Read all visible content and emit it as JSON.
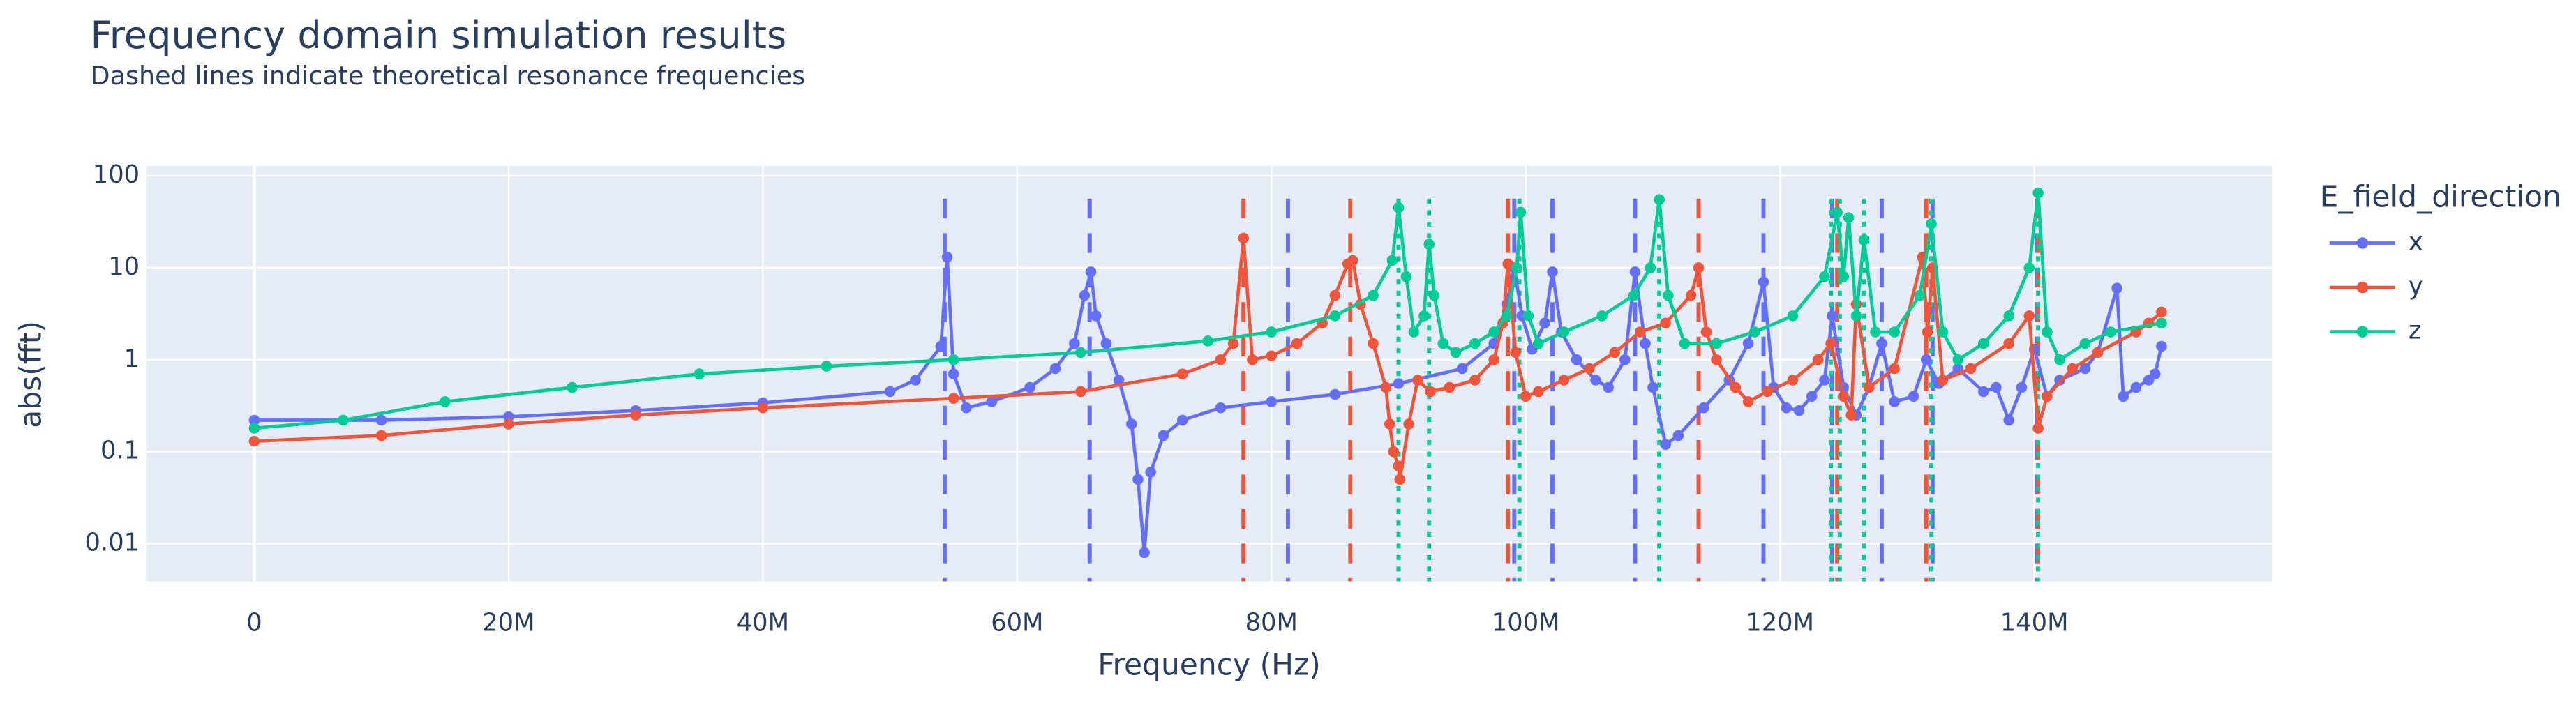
{
  "chart_data": {
    "type": "line",
    "title": "Frequency domain simulation results",
    "subtitle": "Dashed lines indicate theoretical resonance frequencies",
    "x_label": "Frequency (Hz)",
    "y_label": "abs(fft)",
    "legend_title": "E_field_direction",
    "legend_position": "right",
    "grid": true,
    "y_scale": "log",
    "xlim": [
      -8500000.0,
      158700000.0
    ],
    "ylim": [
      0.0039,
      128
    ],
    "xticks": [
      0,
      {
        "value": 20000000.0,
        "label": "20M"
      },
      {
        "value": 40000000.0,
        "label": "40M"
      },
      {
        "value": 60000000.0,
        "label": "60M"
      },
      {
        "value": 80000000.0,
        "label": "80M"
      },
      {
        "value": 100000000.0,
        "label": "100M"
      },
      {
        "value": 120000000.0,
        "label": "120M"
      },
      {
        "value": 140000000.0,
        "label": "140M"
      }
    ],
    "yticks": [
      0.01,
      0.1,
      1,
      10,
      100
    ],
    "series": [
      {
        "name": "x",
        "color": "#636efa",
        "x": [
          0,
          10000000.0,
          20000000.0,
          30000000.0,
          40000000.0,
          50000000.0,
          52000000.0,
          54000000.0,
          54500000.0,
          55000000.0,
          56000000.0,
          58000000.0,
          61000000.0,
          63000000.0,
          64500000.0,
          65300000.0,
          65800000.0,
          66200000.0,
          67000000.0,
          68000000.0,
          69000000.0,
          69500000.0,
          70000000.0,
          70500000.0,
          71500000.0,
          73000000.0,
          76000000.0,
          80000000.0,
          85000000.0,
          90000000.0,
          95000000.0,
          97500000.0,
          98500000.0,
          99100000.0,
          99700000.0,
          100500000.0,
          101500000.0,
          102100000.0,
          102800000.0,
          104000000.0,
          105500000.0,
          106500000.0,
          107800000.0,
          108600000.0,
          109400000.0,
          110000000.0,
          111000000.0,
          112000000.0,
          114000000.0,
          116000000.0,
          117500000.0,
          118700000.0,
          119500000.0,
          120500000.0,
          121500000.0,
          122500000.0,
          123500000.0,
          124100000.0,
          125000000.0,
          126000000.0,
          127000000.0,
          128000000.0,
          129000000.0,
          130500000.0,
          131500000.0,
          132500000.0,
          134000000.0,
          136000000.0,
          137000000.0,
          138000000.0,
          139000000.0,
          140000000.0,
          141000000.0,
          142000000.0,
          144000000.0,
          145000000.0,
          146500000.0,
          147000000.0,
          148000000.0,
          149000000.0,
          149500000.0,
          150000000.0
        ],
        "values": [
          0.22,
          0.22,
          0.24,
          0.28,
          0.34,
          0.45,
          0.6,
          1.4,
          13,
          0.7,
          0.3,
          0.35,
          0.5,
          0.8,
          1.5,
          5,
          9,
          3,
          1.5,
          0.6,
          0.2,
          0.05,
          0.008,
          0.06,
          0.15,
          0.22,
          0.3,
          0.35,
          0.42,
          0.55,
          0.8,
          1.5,
          4,
          10,
          3,
          1.3,
          2.5,
          9,
          2,
          1,
          0.6,
          0.5,
          1,
          9,
          1.5,
          0.5,
          0.12,
          0.15,
          0.3,
          0.6,
          1.5,
          7,
          0.5,
          0.3,
          0.28,
          0.4,
          0.6,
          3,
          0.5,
          0.25,
          0.5,
          1.5,
          0.35,
          0.4,
          1,
          0.55,
          0.8,
          0.45,
          0.5,
          0.22,
          0.5,
          1.3,
          0.4,
          0.6,
          0.8,
          1.2,
          6,
          0.4,
          0.5,
          0.6,
          0.7,
          1.4
        ]
      },
      {
        "name": "y",
        "color": "#EF553B",
        "x": [
          0,
          10000000.0,
          20000000.0,
          30000000.0,
          40000000.0,
          55000000.0,
          65000000.0,
          73000000.0,
          76000000.0,
          77000000.0,
          77800000.0,
          78500000.0,
          80000000.0,
          82000000.0,
          84000000.0,
          85000000.0,
          86000000.0,
          86400000.0,
          87000000.0,
          88000000.0,
          89000000.0,
          89300000.0,
          89600000.0,
          90000000.0,
          90100000.0,
          90800000.0,
          91500000.0,
          92500000.0,
          94000000.0,
          96000000.0,
          97500000.0,
          98200000.0,
          98600000.0,
          99200000.0,
          100000000.0,
          101000000.0,
          103000000.0,
          105000000.0,
          107000000.0,
          109000000.0,
          111000000.0,
          113000000.0,
          113600000.0,
          114200000.0,
          115000000.0,
          116500000.0,
          117500000.0,
          119000000.0,
          121000000.0,
          123000000.0,
          124000000.0,
          125000000.0,
          125600000.0,
          126000000.0,
          127000000.0,
          129000000.0,
          131200000.0,
          131600000.0,
          132000000.0,
          132800000.0,
          135000000.0,
          138000000.0,
          139600000.0,
          140300000.0,
          141000000.0,
          143000000.0,
          145000000.0,
          148000000.0,
          149000000.0,
          150000000.0
        ],
        "values": [
          0.13,
          0.15,
          0.2,
          0.25,
          0.3,
          0.38,
          0.45,
          0.7,
          1,
          1.5,
          21,
          1,
          1.1,
          1.5,
          2.5,
          5,
          11,
          12,
          4,
          1.5,
          0.5,
          0.2,
          0.1,
          0.07,
          0.05,
          0.2,
          0.6,
          0.45,
          0.5,
          0.6,
          1,
          2.5,
          11,
          1.2,
          0.4,
          0.45,
          0.6,
          0.8,
          1.2,
          2,
          2.5,
          5,
          10,
          2,
          1,
          0.5,
          0.35,
          0.45,
          0.6,
          1,
          1.5,
          0.4,
          0.25,
          4,
          0.5,
          0.8,
          13,
          2,
          10,
          0.6,
          0.8,
          1.5,
          3,
          0.18,
          0.4,
          0.8,
          1.2,
          2,
          2.5,
          3.3
        ]
      },
      {
        "name": "z",
        "color": "#00cc96",
        "x": [
          0,
          7000000.0,
          15000000.0,
          25000000.0,
          35000000.0,
          45000000.0,
          55000000.0,
          65000000.0,
          75000000.0,
          80000000.0,
          85000000.0,
          88000000.0,
          89500000.0,
          90000000.0,
          90600000.0,
          91200000.0,
          92000000.0,
          92400000.0,
          92800000.0,
          93500000.0,
          94500000.0,
          96000000.0,
          97500000.0,
          98500000.0,
          99300000.0,
          99600000.0,
          100200000.0,
          101000000.0,
          103000000.0,
          106000000.0,
          108500000.0,
          109800000.0,
          110500000.0,
          111200000.0,
          112500000.0,
          115000000.0,
          118000000.0,
          121000000.0,
          123500000.0,
          124500000.0,
          125000000.0,
          125400000.0,
          126000000.0,
          126600000.0,
          127500000.0,
          129000000.0,
          131000000.0,
          131900000.0,
          132800000.0,
          134000000.0,
          136000000.0,
          138000000.0,
          139600000.0,
          140300000.0,
          141000000.0,
          142000000.0,
          144000000.0,
          146000000.0,
          150000000.0
        ],
        "values": [
          0.18,
          0.22,
          0.35,
          0.5,
          0.7,
          0.85,
          1,
          1.2,
          1.6,
          2,
          3,
          5,
          12,
          45,
          8,
          2,
          3,
          18,
          5,
          1.5,
          1.2,
          1.5,
          2,
          3,
          10,
          40,
          3,
          1.5,
          2,
          3,
          5,
          10,
          55,
          5,
          1.5,
          1.5,
          2,
          3,
          8,
          40,
          8,
          35,
          3,
          20,
          2,
          2,
          5,
          30,
          2,
          1,
          1.5,
          3,
          10,
          65,
          2,
          1,
          1.5,
          2,
          2.5
        ]
      }
    ],
    "resonance_lines": [
      {
        "x": 54300000.0,
        "color": "#636efa",
        "dash": "dash"
      },
      {
        "x": 65700000.0,
        "color": "#636efa",
        "dash": "dash"
      },
      {
        "x": 81300000.0,
        "color": "#636efa",
        "dash": "dash"
      },
      {
        "x": 99100000.0,
        "color": "#636efa",
        "dash": "dash"
      },
      {
        "x": 102100000.0,
        "color": "#636efa",
        "dash": "dash"
      },
      {
        "x": 108600000.0,
        "color": "#636efa",
        "dash": "dash"
      },
      {
        "x": 118700000.0,
        "color": "#636efa",
        "dash": "dash"
      },
      {
        "x": 124100000.0,
        "color": "#636efa",
        "dash": "dash"
      },
      {
        "x": 128000000.0,
        "color": "#636efa",
        "dash": "dash"
      },
      {
        "x": 132000000.0,
        "color": "#636efa",
        "dash": "dash"
      },
      {
        "x": 140200000.0,
        "color": "#636efa",
        "dash": "dash"
      },
      {
        "x": 77800000.0,
        "color": "#EF553B",
        "dash": "dash"
      },
      {
        "x": 86200000.0,
        "color": "#EF553B",
        "dash": "dash"
      },
      {
        "x": 98600000.0,
        "color": "#EF553B",
        "dash": "dash"
      },
      {
        "x": 113600000.0,
        "color": "#EF553B",
        "dash": "dash"
      },
      {
        "x": 124500000.0,
        "color": "#EF553B",
        "dash": "dash"
      },
      {
        "x": 131500000.0,
        "color": "#EF553B",
        "dash": "dash"
      },
      {
        "x": 140300000.0,
        "color": "#EF553B",
        "dash": "dash"
      },
      {
        "x": 90000000.0,
        "color": "#00cc96",
        "dash": "dot"
      },
      {
        "x": 92400000.0,
        "color": "#00cc96",
        "dash": "dot"
      },
      {
        "x": 99500000.0,
        "color": "#00cc96",
        "dash": "dot"
      },
      {
        "x": 110500000.0,
        "color": "#00cc96",
        "dash": "dot"
      },
      {
        "x": 124000000.0,
        "color": "#00cc96",
        "dash": "dot"
      },
      {
        "x": 124700000.0,
        "color": "#00cc96",
        "dash": "dot"
      },
      {
        "x": 126600000.0,
        "color": "#00cc96",
        "dash": "dot"
      },
      {
        "x": 131900000.0,
        "color": "#00cc96",
        "dash": "dot"
      },
      {
        "x": 140300000.0,
        "color": "#00cc96",
        "dash": "dot"
      }
    ]
  }
}
